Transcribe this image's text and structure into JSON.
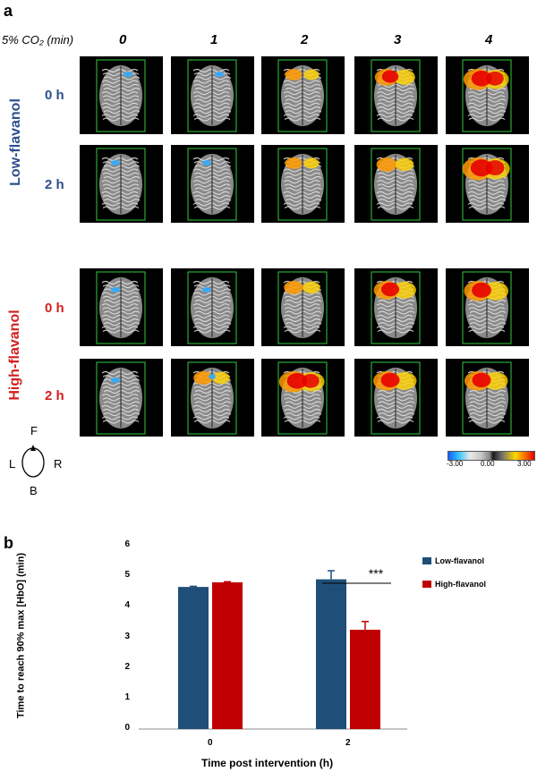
{
  "panel_a": {
    "letter": "a",
    "co2_header": "5% CO₂ (min)",
    "minutes": [
      "0",
      "1",
      "2",
      "3",
      "4"
    ],
    "groups": [
      {
        "label": "Low-flavanol",
        "color": "#2b4f8c",
        "rows": [
          "0 h",
          "2 h"
        ]
      },
      {
        "label": "High-flavanol",
        "color": "#d21f1f",
        "rows": [
          "0 h",
          "2 h"
        ]
      }
    ],
    "activation_levels": [
      [
        0.05,
        0.12,
        0.3,
        0.6,
        0.85
      ],
      [
        0.05,
        0.12,
        0.3,
        0.45,
        0.95
      ],
      [
        0.08,
        0.12,
        0.4,
        0.7,
        0.8
      ],
      [
        0.08,
        0.4,
        0.85,
        0.75,
        0.75
      ]
    ],
    "compass": {
      "front": "F",
      "back": "B",
      "left": "L",
      "right": "R"
    },
    "colorbar": {
      "min": "-3.00",
      "mid": "0.00",
      "max": "3.00"
    }
  },
  "panel_b": {
    "letter": "b",
    "colors": {
      "low": "#1f4e79",
      "high": "#c00000"
    }
  },
  "chart_data": {
    "type": "bar",
    "xlabel": "Time post intervention (h)",
    "ylabel": "Time to reach 90% max [HbO] (min)",
    "categories": [
      "0",
      "2"
    ],
    "ylim": [
      0,
      6
    ],
    "yticks": [
      "0",
      "1",
      "2",
      "3",
      "4",
      "5",
      "6"
    ],
    "series": [
      {
        "name": "Low-flavanol",
        "values": [
          4.65,
          4.9
        ],
        "errors": [
          0.02,
          0.28
        ]
      },
      {
        "name": "High-flavanol",
        "values": [
          4.8,
          3.25
        ],
        "errors": [
          0.02,
          0.27
        ]
      }
    ],
    "annotation": "***",
    "legend_position": "top-right"
  }
}
